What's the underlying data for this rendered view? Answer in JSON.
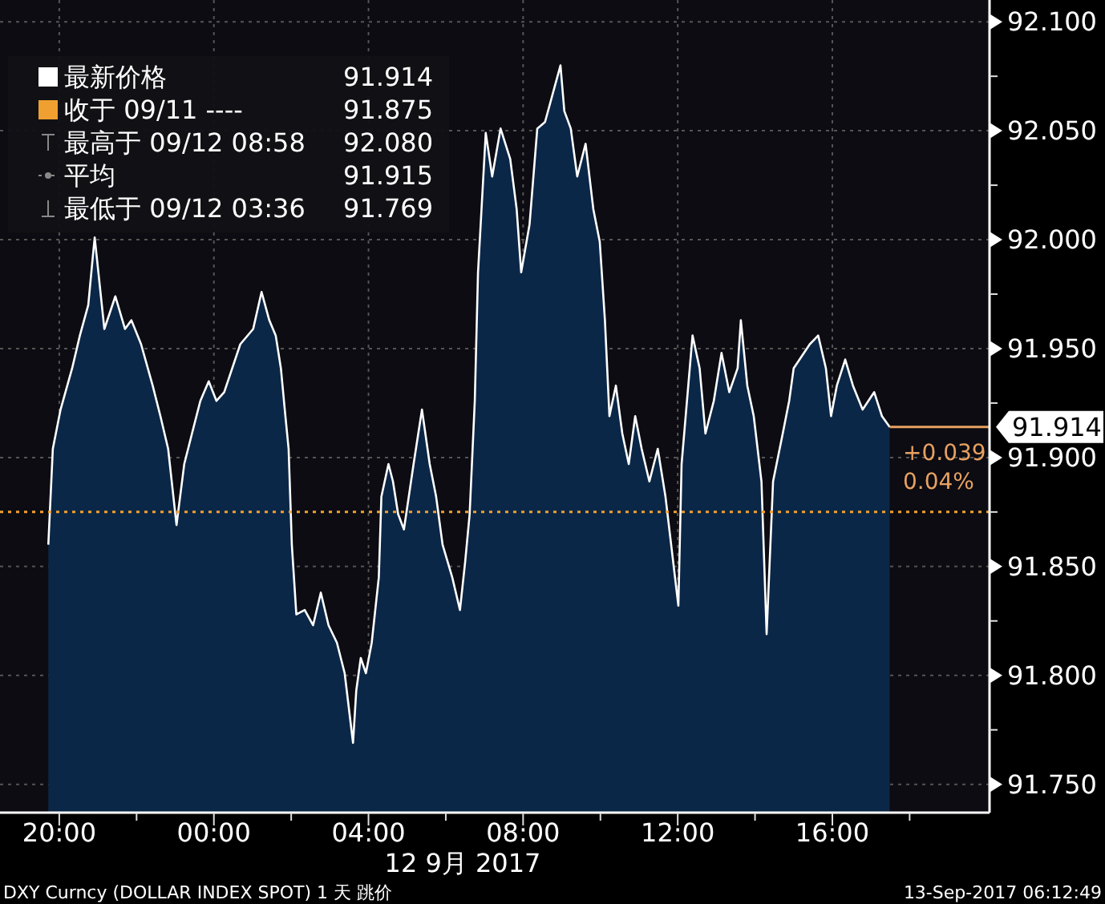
{
  "chart_data": {
    "type": "area",
    "xlabel": "12 9月 2017",
    "x": [
      "2017-09-11T19:43",
      "2017-09-11T19:50",
      "2017-09-11T20:02",
      "2017-09-11T20:20",
      "2017-09-11T20:32",
      "2017-09-11T20:45",
      "2017-09-11T20:52",
      "2017-09-11T20:55",
      "2017-09-11T21:10",
      "2017-09-11T21:27",
      "2017-09-11T21:42",
      "2017-09-11T21:52",
      "2017-09-11T22:07",
      "2017-09-11T22:25",
      "2017-09-11T22:37",
      "2017-09-11T22:49",
      "2017-09-11T23:02",
      "2017-09-11T23:14",
      "2017-09-11T23:26",
      "2017-09-11T23:39",
      "2017-09-11T23:52",
      "2017-09-12T00:04",
      "2017-09-12T00:16",
      "2017-09-12T00:41",
      "2017-09-12T01:01",
      "2017-09-12T01:14",
      "2017-09-12T01:26",
      "2017-09-12T01:36",
      "2017-09-12T01:44",
      "2017-09-12T01:51",
      "2017-09-12T01:56",
      "2017-09-12T02:01",
      "2017-09-12T02:08",
      "2017-09-12T02:21",
      "2017-09-12T02:34",
      "2017-09-12T02:46",
      "2017-09-12T02:58",
      "2017-09-12T03:11",
      "2017-09-12T03:23",
      "2017-09-12T03:36",
      "2017-09-12T03:41",
      "2017-09-12T03:48",
      "2017-09-12T03:56",
      "2017-09-12T04:05",
      "2017-09-12T04:16",
      "2017-09-12T04:20",
      "2017-09-12T04:31",
      "2017-09-12T04:38",
      "2017-09-12T04:46",
      "2017-09-12T04:55",
      "2017-09-12T05:10",
      "2017-09-12T05:23",
      "2017-09-12T05:35",
      "2017-09-12T05:45",
      "2017-09-12T05:55",
      "2017-09-12T06:10",
      "2017-09-12T06:22",
      "2017-09-12T06:30",
      "2017-09-12T06:37",
      "2017-09-12T06:45",
      "2017-09-12T06:50",
      "2017-09-12T07:02",
      "2017-09-12T07:12",
      "2017-09-12T07:25",
      "2017-09-12T07:40",
      "2017-09-12T07:50",
      "2017-09-12T07:57",
      "2017-09-12T08:10",
      "2017-09-12T08:22",
      "2017-09-12T08:34",
      "2017-09-12T08:58",
      "2017-09-12T09:04",
      "2017-09-12T09:14",
      "2017-09-12T09:24",
      "2017-09-12T09:37",
      "2017-09-12T09:49",
      "2017-09-12T09:59",
      "2017-09-12T10:07",
      "2017-09-12T10:14",
      "2017-09-12T10:24",
      "2017-09-12T10:34",
      "2017-09-12T10:44",
      "2017-09-12T10:54",
      "2017-09-12T11:04",
      "2017-09-12T11:16",
      "2017-09-12T11:29",
      "2017-09-12T11:41",
      "2017-09-12T12:01",
      "2017-09-12T12:06",
      "2017-09-12T12:23",
      "2017-09-12T12:34",
      "2017-09-12T12:43",
      "2017-09-12T12:56",
      "2017-09-12T13:08",
      "2017-09-12T13:20",
      "2017-09-12T13:33",
      "2017-09-12T13:38",
      "2017-09-12T13:48",
      "2017-09-12T13:58",
      "2017-09-12T14:10",
      "2017-09-12T14:18",
      "2017-09-12T14:28",
      "2017-09-12T14:43",
      "2017-09-12T14:53",
      "2017-09-12T15:00",
      "2017-09-12T15:25",
      "2017-09-12T15:38",
      "2017-09-12T15:50",
      "2017-09-12T15:58",
      "2017-09-12T16:07",
      "2017-09-12T16:20",
      "2017-09-12T16:32",
      "2017-09-12T16:47",
      "2017-09-12T17:05",
      "2017-09-12T17:17",
      "2017-09-12T17:29"
    ],
    "series": [
      {
        "name": "最新价格",
        "color": "#ffffff",
        "values": [
          91.86,
          91.904,
          91.922,
          91.941,
          91.956,
          91.97,
          91.992,
          92.001,
          91.959,
          91.974,
          91.959,
          91.963,
          91.952,
          91.933,
          91.919,
          91.904,
          91.869,
          91.897,
          91.911,
          91.926,
          91.935,
          91.926,
          91.93,
          91.952,
          91.959,
          91.976,
          91.963,
          91.956,
          91.941,
          91.919,
          91.904,
          91.86,
          91.828,
          91.83,
          91.823,
          91.838,
          91.823,
          91.815,
          91.801,
          91.769,
          91.793,
          91.808,
          91.801,
          91.815,
          91.845,
          91.882,
          91.897,
          91.889,
          91.874,
          91.867,
          91.897,
          91.922,
          91.897,
          91.882,
          91.86,
          91.845,
          91.83,
          91.852,
          91.874,
          91.926,
          91.985,
          92.049,
          92.029,
          92.051,
          92.037,
          92.014,
          91.985,
          92.007,
          92.051,
          92.054,
          92.08,
          92.059,
          92.051,
          92.029,
          92.044,
          92.014,
          91.999,
          91.963,
          91.919,
          91.933,
          91.911,
          91.897,
          91.919,
          91.904,
          91.889,
          91.904,
          91.882,
          91.832,
          91.897,
          91.956,
          91.941,
          91.911,
          91.926,
          91.948,
          91.93,
          91.941,
          91.963,
          91.933,
          91.919,
          91.889,
          91.819,
          91.889,
          91.911,
          91.926,
          91.941,
          91.952,
          91.956,
          91.941,
          91.919,
          91.933,
          91.945,
          91.933,
          91.922,
          91.93,
          91.919,
          91.914
        ]
      }
    ],
    "xlim": [
      "2017-09-11T18:28",
      "2017-09-12T20:04"
    ],
    "xticks": [
      {
        "value": "2017-09-11T20:00",
        "label": "20:00"
      },
      {
        "value": "2017-09-11T22:00",
        "label": null
      },
      {
        "value": "2017-09-12T00:00",
        "label": "00:00"
      },
      {
        "value": "2017-09-12T02:00",
        "label": null
      },
      {
        "value": "2017-09-12T04:00",
        "label": "04:00"
      },
      {
        "value": "2017-09-12T06:00",
        "label": null
      },
      {
        "value": "2017-09-12T08:00",
        "label": "08:00"
      },
      {
        "value": "2017-09-12T10:00",
        "label": null
      },
      {
        "value": "2017-09-12T12:00",
        "label": "12:00"
      },
      {
        "value": "2017-09-12T14:00",
        "label": null
      },
      {
        "value": "2017-09-12T16:00",
        "label": "16:00"
      },
      {
        "value": "2017-09-12T18:00",
        "label": null
      }
    ],
    "ylim": [
      91.737,
      92.11
    ],
    "yticks": [
      {
        "value": 91.75,
        "label": "91.750"
      },
      {
        "value": 91.775,
        "label": null
      },
      {
        "value": 91.8,
        "label": "91.800"
      },
      {
        "value": 91.825,
        "label": null
      },
      {
        "value": 91.85,
        "label": "91.850"
      },
      {
        "value": 91.875,
        "label": null
      },
      {
        "value": 91.9,
        "label": "91.900"
      },
      {
        "value": 91.925,
        "label": null
      },
      {
        "value": 91.95,
        "label": "91.950"
      },
      {
        "value": 91.975,
        "label": null
      },
      {
        "value": 92.0,
        "label": "92.000"
      },
      {
        "value": 92.025,
        "label": null
      },
      {
        "value": 92.05,
        "label": "92.050"
      },
      {
        "value": 92.075,
        "label": null
      },
      {
        "value": 92.1,
        "label": "92.100"
      }
    ],
    "ref_lines": [
      {
        "axis": "y",
        "value": 91.875,
        "label": "收于 09/11 ----",
        "color": "#f0a030",
        "line_style": "dotted"
      },
      {
        "axis": "y",
        "value": 91.914,
        "label": "91.914",
        "color": "#e8a060",
        "line_style": "solid"
      }
    ],
    "annotations": [
      "91.914",
      "91.875",
      "最高于 09/12 08:58",
      "92.080",
      "平均",
      "91.915",
      "最低于 09/12 03:36",
      "91.769",
      "+0.039",
      "0.04%",
      "DXY Curncy (DOLLAR INDEX SPOT) 1 天  跳价",
      "13-Sep-2017 06:12:49"
    ],
    "grid": true,
    "legend": "top left"
  }
}
